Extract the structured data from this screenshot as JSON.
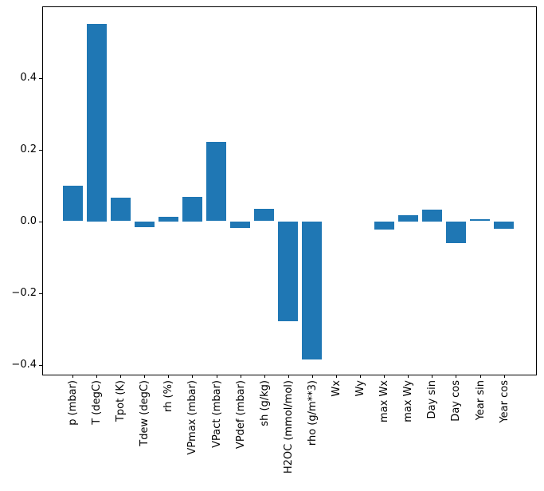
{
  "chart_data": {
    "type": "bar",
    "title": "",
    "xlabel": "",
    "ylabel": "",
    "categories": [
      "p (mbar)",
      "T (degC)",
      "Tpot (K)",
      "Tdew (degC)",
      "rh (%)",
      "VPmax (mbar)",
      "VPact (mbar)",
      "VPdef (mbar)",
      "sh (g/kg)",
      "H2OC (mmol/mol)",
      "rho (g/m**3)",
      "Wx",
      "Wy",
      "max Wx",
      "max Wy",
      "Day sin",
      "Day cos",
      "Year sin",
      "Year cos"
    ],
    "values": [
      0.098,
      0.55,
      0.065,
      -0.015,
      0.013,
      0.068,
      0.221,
      -0.017,
      0.034,
      -0.278,
      -0.384,
      0.0,
      0.0,
      -0.023,
      0.017,
      0.033,
      -0.06,
      0.005,
      -0.02
    ],
    "yticks": [
      -0.4,
      -0.2,
      0.0,
      0.2,
      0.4
    ],
    "ytick_labels": [
      "−0.4",
      "−0.2",
      "0.0",
      "0.2",
      "0.4"
    ],
    "ylim": [
      -0.43,
      0.6
    ],
    "bar_color": "#1f77b4",
    "spine_color": "#000000",
    "text_color": "#000000",
    "grid": false,
    "legend": null,
    "x_label_rotation_deg": 90
  }
}
